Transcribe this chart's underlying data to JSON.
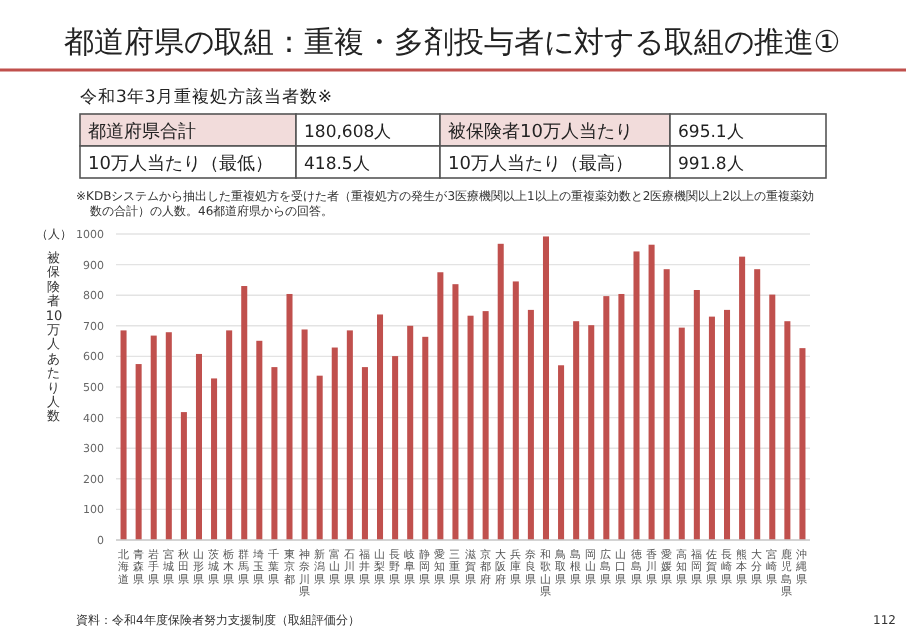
{
  "chart_data": [
    {
      "type": "other",
      "title": "都道府県の取組：重複・多剤投与者に対する取組の推進①",
      "subtitle": "令和3年3月重複処方該当者数※",
      "annotations": [
        "都道府県合計",
        "180,608人",
        "被保険者10万人当たり",
        "695.1人",
        "10万人当たり（最低）",
        "418.5人",
        "10万人当たり（最高）",
        "991.8人",
        "※KDBシステムから抽出した重複処方を受けた者（重複処方の発生が3医療機関以上1以上の重複薬効数と2医療機関以上2以上の重複薬効数の合計）の人数。46都道府県からの回答。"
      ]
    },
    {
      "type": "bar",
      "ylabel": "被保険者10万人あたり人数",
      "color": "#c0504d",
      "categories": [
        "北海道",
        "青森県",
        "岩手県",
        "宮城県",
        "秋田県",
        "山形県",
        "茨城県",
        "栃木県",
        "群馬県",
        "埼玉県",
        "千葉県",
        "東京都",
        "神奈川県",
        "新潟県",
        "富山県",
        "石川県",
        "福井県",
        "山梨県",
        "長野県",
        "岐阜県",
        "静岡県",
        "愛知県",
        "三重県",
        "滋賀県",
        "京都府",
        "大阪府",
        "兵庫県",
        "奈良県",
        "和歌山県",
        "鳥取県",
        "島根県",
        "岡山県",
        "広島県",
        "山口県",
        "徳島県",
        "香川県",
        "愛媛県",
        "高知県",
        "福岡県",
        "佐賀県",
        "長崎県",
        "熊本県",
        "大分県",
        "宮崎県",
        "鹿児島県",
        "沖縄県"
      ],
      "values": [
        685,
        575,
        668,
        679,
        418,
        608,
        528,
        685,
        830,
        651,
        565,
        804,
        688,
        537,
        629,
        685,
        565,
        737,
        601,
        700,
        664,
        875,
        836,
        733,
        748,
        968,
        845,
        752,
        992,
        571,
        715,
        702,
        797,
        804,
        943,
        965,
        885,
        694,
        817,
        730,
        752,
        926,
        885,
        802,
        715,
        627
      ],
      "ylim": [
        0,
        1000
      ],
      "yticks": [
        0,
        100,
        200,
        300,
        400,
        500,
        600,
        700,
        800,
        900,
        1000
      ],
      "grid": "y",
      "annotations": [
        "（人）",
        "資料：令和4年度保険者努力支援制度（取組評価分）",
        "112"
      ]
    }
  ]
}
